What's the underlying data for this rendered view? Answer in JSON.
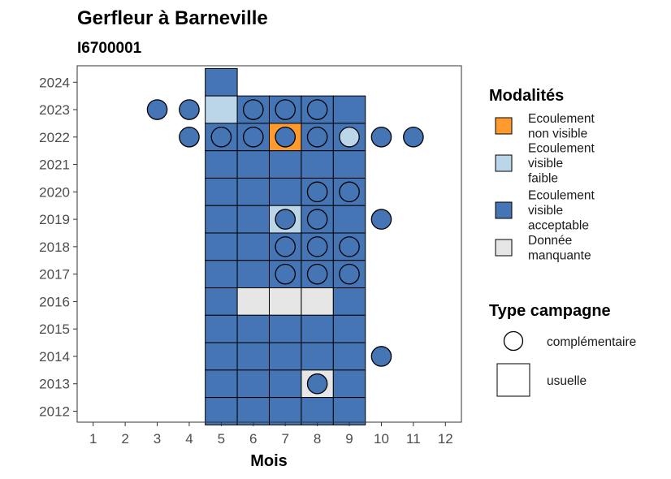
{
  "chart_data": {
    "type": "heatmap",
    "title": "Gerfleur à Barneville",
    "subtitle": "I6700001",
    "xlabel": "Mois",
    "ylabel": "",
    "x_ticks": [
      "1",
      "2",
      "3",
      "4",
      "5",
      "6",
      "7",
      "8",
      "9",
      "10",
      "11",
      "12"
    ],
    "y_ticks": [
      "2024",
      "2023",
      "2022",
      "2021",
      "2020",
      "2019",
      "2018",
      "2017",
      "2016",
      "2015",
      "2014",
      "2013",
      "2012"
    ],
    "xlim": [
      0.5,
      12.5
    ],
    "ylim": [
      2011.6,
      2024.6
    ],
    "grid": false,
    "legend_placement": "right",
    "modalites": [
      {
        "key": "nv",
        "label_lines": [
          "Ecoulement",
          "non visible"
        ],
        "color": "#FF9A2E"
      },
      {
        "key": "vf",
        "label_lines": [
          "Ecoulement",
          "visible",
          "faible"
        ],
        "color": "#BCD6E9"
      },
      {
        "key": "va",
        "label_lines": [
          "Ecoulement",
          "visible",
          "acceptable"
        ],
        "color": "#4575B4"
      },
      {
        "key": "dm",
        "label_lines": [
          "Donnée",
          "manquante"
        ],
        "color": "#E6E6E6"
      }
    ],
    "legend_modalites_title": "Modalités",
    "legend_type_title": "Type campagne",
    "types": [
      {
        "key": "complementaire",
        "label": "complémentaire",
        "shape": "circle"
      },
      {
        "key": "usuelle",
        "label": "usuelle",
        "shape": "square"
      }
    ],
    "usuelle": [
      {
        "year": 2024,
        "month": 5,
        "modalite": "va"
      },
      {
        "year": 2023,
        "month": 5,
        "modalite": "vf"
      },
      {
        "year": 2023,
        "month": 6,
        "modalite": "va"
      },
      {
        "year": 2023,
        "month": 7,
        "modalite": "va"
      },
      {
        "year": 2023,
        "month": 8,
        "modalite": "va"
      },
      {
        "year": 2023,
        "month": 9,
        "modalite": "va"
      },
      {
        "year": 2022,
        "month": 5,
        "modalite": "va"
      },
      {
        "year": 2022,
        "month": 6,
        "modalite": "va"
      },
      {
        "year": 2022,
        "month": 7,
        "modalite": "nv"
      },
      {
        "year": 2022,
        "month": 8,
        "modalite": "va"
      },
      {
        "year": 2022,
        "month": 9,
        "modalite": "va"
      },
      {
        "year": 2021,
        "month": 5,
        "modalite": "va"
      },
      {
        "year": 2021,
        "month": 6,
        "modalite": "va"
      },
      {
        "year": 2021,
        "month": 7,
        "modalite": "va"
      },
      {
        "year": 2021,
        "month": 8,
        "modalite": "va"
      },
      {
        "year": 2021,
        "month": 9,
        "modalite": "va"
      },
      {
        "year": 2020,
        "month": 5,
        "modalite": "va"
      },
      {
        "year": 2020,
        "month": 6,
        "modalite": "va"
      },
      {
        "year": 2020,
        "month": 7,
        "modalite": "va"
      },
      {
        "year": 2020,
        "month": 8,
        "modalite": "va"
      },
      {
        "year": 2020,
        "month": 9,
        "modalite": "va"
      },
      {
        "year": 2019,
        "month": 5,
        "modalite": "va"
      },
      {
        "year": 2019,
        "month": 6,
        "modalite": "va"
      },
      {
        "year": 2019,
        "month": 7,
        "modalite": "vf"
      },
      {
        "year": 2019,
        "month": 8,
        "modalite": "va"
      },
      {
        "year": 2019,
        "month": 9,
        "modalite": "va"
      },
      {
        "year": 2018,
        "month": 5,
        "modalite": "va"
      },
      {
        "year": 2018,
        "month": 6,
        "modalite": "va"
      },
      {
        "year": 2018,
        "month": 7,
        "modalite": "va"
      },
      {
        "year": 2018,
        "month": 8,
        "modalite": "va"
      },
      {
        "year": 2018,
        "month": 9,
        "modalite": "va"
      },
      {
        "year": 2017,
        "month": 5,
        "modalite": "va"
      },
      {
        "year": 2017,
        "month": 6,
        "modalite": "va"
      },
      {
        "year": 2017,
        "month": 7,
        "modalite": "va"
      },
      {
        "year": 2017,
        "month": 8,
        "modalite": "va"
      },
      {
        "year": 2017,
        "month": 9,
        "modalite": "va"
      },
      {
        "year": 2016,
        "month": 5,
        "modalite": "va"
      },
      {
        "year": 2016,
        "month": 6,
        "modalite": "dm"
      },
      {
        "year": 2016,
        "month": 7,
        "modalite": "dm"
      },
      {
        "year": 2016,
        "month": 8,
        "modalite": "dm"
      },
      {
        "year": 2016,
        "month": 9,
        "modalite": "va"
      },
      {
        "year": 2015,
        "month": 5,
        "modalite": "va"
      },
      {
        "year": 2015,
        "month": 6,
        "modalite": "va"
      },
      {
        "year": 2015,
        "month": 7,
        "modalite": "va"
      },
      {
        "year": 2015,
        "month": 8,
        "modalite": "va"
      },
      {
        "year": 2015,
        "month": 9,
        "modalite": "va"
      },
      {
        "year": 2014,
        "month": 5,
        "modalite": "va"
      },
      {
        "year": 2014,
        "month": 6,
        "modalite": "va"
      },
      {
        "year": 2014,
        "month": 7,
        "modalite": "va"
      },
      {
        "year": 2014,
        "month": 8,
        "modalite": "va"
      },
      {
        "year": 2014,
        "month": 9,
        "modalite": "va"
      },
      {
        "year": 2013,
        "month": 5,
        "modalite": "va"
      },
      {
        "year": 2013,
        "month": 6,
        "modalite": "va"
      },
      {
        "year": 2013,
        "month": 7,
        "modalite": "va"
      },
      {
        "year": 2013,
        "month": 8,
        "modalite": "dm"
      },
      {
        "year": 2013,
        "month": 9,
        "modalite": "va"
      },
      {
        "year": 2012,
        "month": 5,
        "modalite": "va"
      },
      {
        "year": 2012,
        "month": 6,
        "modalite": "va"
      },
      {
        "year": 2012,
        "month": 7,
        "modalite": "va"
      },
      {
        "year": 2012,
        "month": 8,
        "modalite": "va"
      },
      {
        "year": 2012,
        "month": 9,
        "modalite": "va"
      }
    ],
    "complementaire": [
      {
        "year": 2023,
        "month": 3,
        "modalite": "va"
      },
      {
        "year": 2023,
        "month": 4,
        "modalite": "va"
      },
      {
        "year": 2023,
        "month": 6,
        "modalite": "va"
      },
      {
        "year": 2023,
        "month": 7,
        "modalite": "va"
      },
      {
        "year": 2023,
        "month": 8,
        "modalite": "va"
      },
      {
        "year": 2022,
        "month": 4,
        "modalite": "va"
      },
      {
        "year": 2022,
        "month": 5,
        "modalite": "va"
      },
      {
        "year": 2022,
        "month": 6,
        "modalite": "va"
      },
      {
        "year": 2022,
        "month": 7,
        "modalite": "va"
      },
      {
        "year": 2022,
        "month": 8,
        "modalite": "va"
      },
      {
        "year": 2022,
        "month": 9,
        "modalite": "vf"
      },
      {
        "year": 2022,
        "month": 10,
        "modalite": "va"
      },
      {
        "year": 2022,
        "month": 11,
        "modalite": "va"
      },
      {
        "year": 2020,
        "month": 8,
        "modalite": "va"
      },
      {
        "year": 2020,
        "month": 9,
        "modalite": "va"
      },
      {
        "year": 2019,
        "month": 7,
        "modalite": "va"
      },
      {
        "year": 2019,
        "month": 8,
        "modalite": "va"
      },
      {
        "year": 2019,
        "month": 10,
        "modalite": "va"
      },
      {
        "year": 2018,
        "month": 7,
        "modalite": "va"
      },
      {
        "year": 2018,
        "month": 8,
        "modalite": "va"
      },
      {
        "year": 2018,
        "month": 9,
        "modalite": "va"
      },
      {
        "year": 2017,
        "month": 7,
        "modalite": "va"
      },
      {
        "year": 2017,
        "month": 8,
        "modalite": "va"
      },
      {
        "year": 2017,
        "month": 9,
        "modalite": "va"
      },
      {
        "year": 2014,
        "month": 10,
        "modalite": "va"
      },
      {
        "year": 2013,
        "month": 8,
        "modalite": "va"
      }
    ]
  }
}
